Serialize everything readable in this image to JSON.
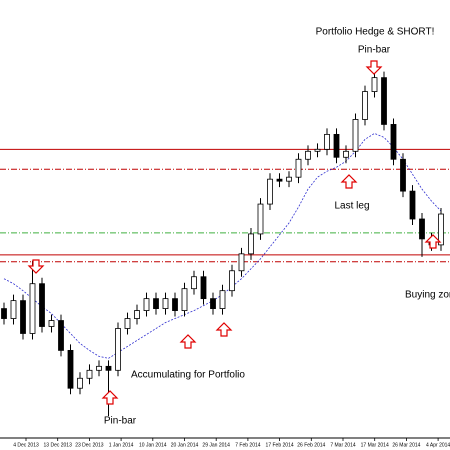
{
  "chart_data": {
    "type": "candlestick",
    "ylim": [
      0,
      440
    ],
    "open": [
      130,
      120,
      138,
      105,
      155,
      112,
      118,
      88,
      50,
      60,
      68,
      72,
      68,
      110,
      120,
      128,
      140,
      130,
      140,
      128,
      150,
      162,
      140,
      130,
      148,
      168,
      185,
      205,
      235,
      260,
      258,
      262,
      280,
      288,
      290,
      305,
      282,
      288,
      320,
      348,
      362,
      315,
      280,
      248,
      220,
      200,
      194
    ],
    "high": [
      136,
      144,
      144,
      178,
      161,
      124,
      124,
      94,
      66,
      74,
      78,
      78,
      116,
      126,
      134,
      146,
      146,
      146,
      146,
      156,
      168,
      168,
      146,
      154,
      174,
      191,
      211,
      241,
      266,
      266,
      268,
      286,
      294,
      296,
      311,
      311,
      294,
      326,
      354,
      378,
      368,
      321,
      286,
      254,
      226,
      206,
      231
    ],
    "low": [
      114,
      114,
      99,
      99,
      106,
      106,
      82,
      44,
      44,
      54,
      62,
      22,
      62,
      104,
      114,
      122,
      124,
      124,
      122,
      122,
      144,
      134,
      124,
      124,
      142,
      162,
      179,
      199,
      229,
      252,
      252,
      256,
      274,
      282,
      284,
      276,
      276,
      282,
      314,
      342,
      309,
      274,
      242,
      214,
      182,
      188,
      188
    ],
    "close": [
      120,
      138,
      105,
      155,
      112,
      118,
      88,
      50,
      60,
      68,
      72,
      68,
      110,
      120,
      128,
      140,
      130,
      140,
      128,
      150,
      162,
      140,
      130,
      148,
      168,
      185,
      205,
      235,
      260,
      258,
      262,
      280,
      288,
      290,
      305,
      282,
      288,
      320,
      348,
      362,
      315,
      280,
      248,
      220,
      200,
      194,
      225
    ],
    "moving_average": {
      "color": "#3030d0",
      "values": [
        160,
        155,
        148,
        140,
        132,
        125,
        115,
        105,
        95,
        88,
        82,
        80,
        86,
        92,
        98,
        104,
        110,
        116,
        120,
        124,
        128,
        133,
        138,
        144,
        152,
        160,
        170,
        180,
        192,
        204,
        216,
        232,
        250,
        262,
        268,
        272,
        278,
        288,
        300,
        306,
        302,
        292,
        280,
        265,
        250,
        238,
        228
      ]
    },
    "levels": [
      {
        "value": 290,
        "style": "solid",
        "color": "#c00000"
      },
      {
        "value": 270,
        "style": "dashdot",
        "color": "#c00000"
      },
      {
        "value": 206,
        "style": "dashdot",
        "color": "#40b040"
      },
      {
        "value": 184,
        "style": "solid",
        "color": "#c00000"
      },
      {
        "value": 177,
        "style": "dashdot",
        "color": "#c00000"
      }
    ],
    "x_labels": [
      "4 Dec 2013",
      "13 Dec 2013",
      "23 Dec 2013",
      "1 Jan 2014",
      "10 Jan 2014",
      "20 Jan 2014",
      "29 Jan 2014",
      "7 Feb 2014",
      "17 Feb 2014",
      "26 Feb 2014",
      "7 Mar 2014",
      "17 Mar 2014",
      "26 Mar 2014",
      "4 Apr 2014"
    ],
    "annotations": [
      "Portfolio Hedge & SHORT!",
      "Pin-bar",
      "Last leg",
      "Buying zone",
      "Accumulating for Portfolio",
      "Pin-bar"
    ]
  }
}
